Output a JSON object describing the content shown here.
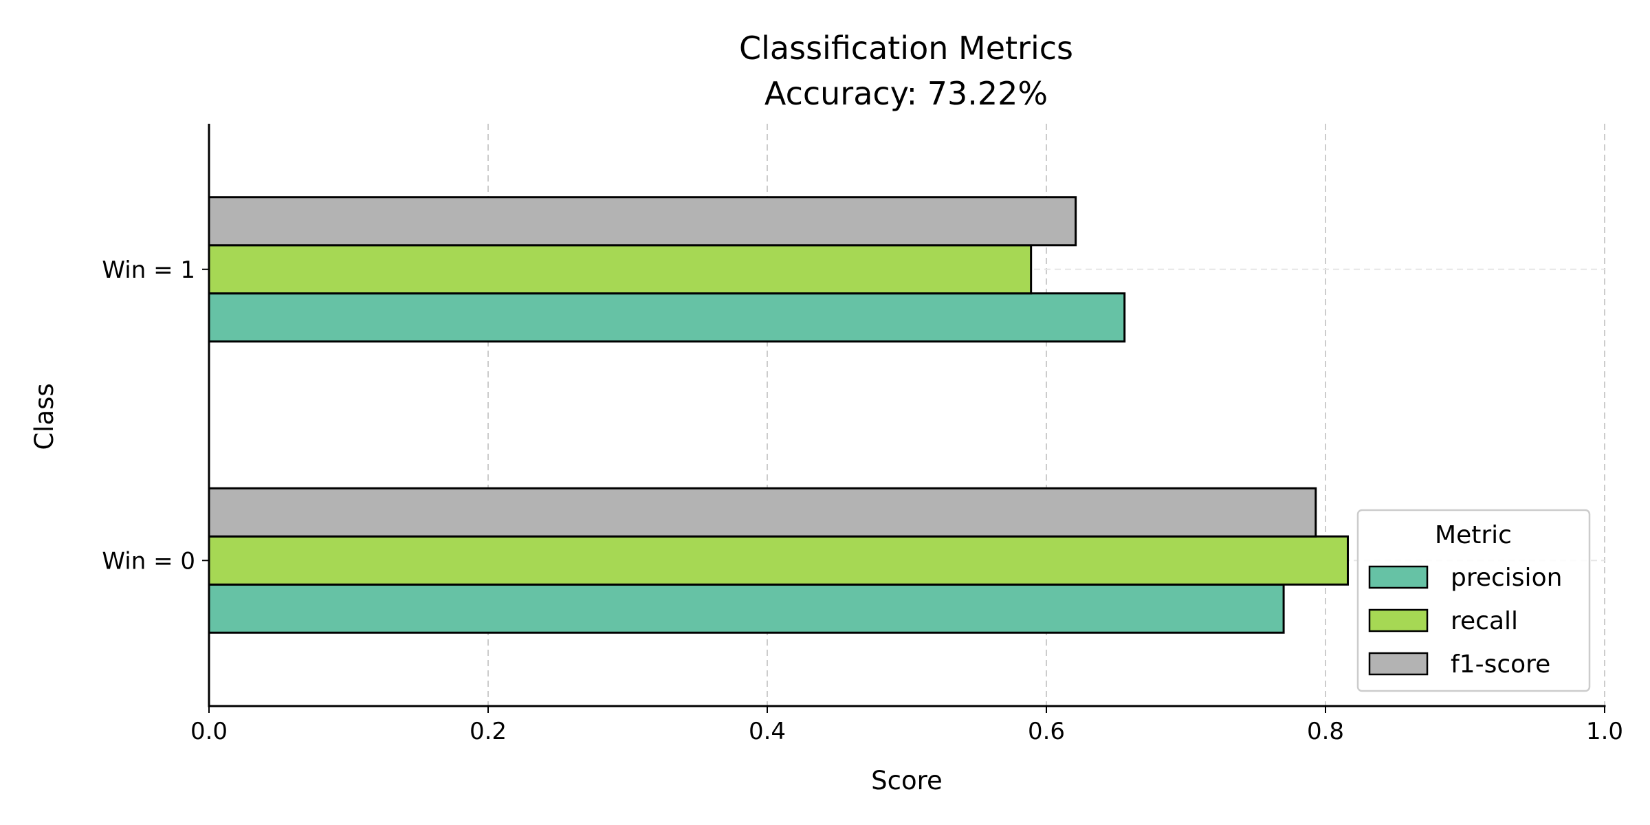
{
  "chart_data": {
    "type": "bar",
    "orientation": "horizontal",
    "title": "Classification Metrics",
    "subtitle": "Accuracy: 73.22%",
    "xlabel": "Score",
    "ylabel": "Class",
    "xlim": [
      0,
      1
    ],
    "x_ticks": [
      "0.0",
      "0.2",
      "0.4",
      "0.6",
      "0.8",
      "1.0"
    ],
    "categories": [
      "Win = 0",
      "Win = 1"
    ],
    "series": [
      {
        "name": "precision",
        "values": [
          0.77,
          0.656
        ],
        "color": "#66c2a5"
      },
      {
        "name": "recall",
        "values": [
          0.816,
          0.589
        ],
        "color": "#a6d854"
      },
      {
        "name": "f1-score",
        "values": [
          0.793,
          0.621
        ],
        "color": "#b3b3b3"
      }
    ],
    "legend": {
      "title": "Metric",
      "placement": "lower-right"
    },
    "grid": "x-major dashed",
    "colors": {
      "bar_edge": "#000000",
      "grid": "#cccccc",
      "axis": "#000000"
    }
  }
}
